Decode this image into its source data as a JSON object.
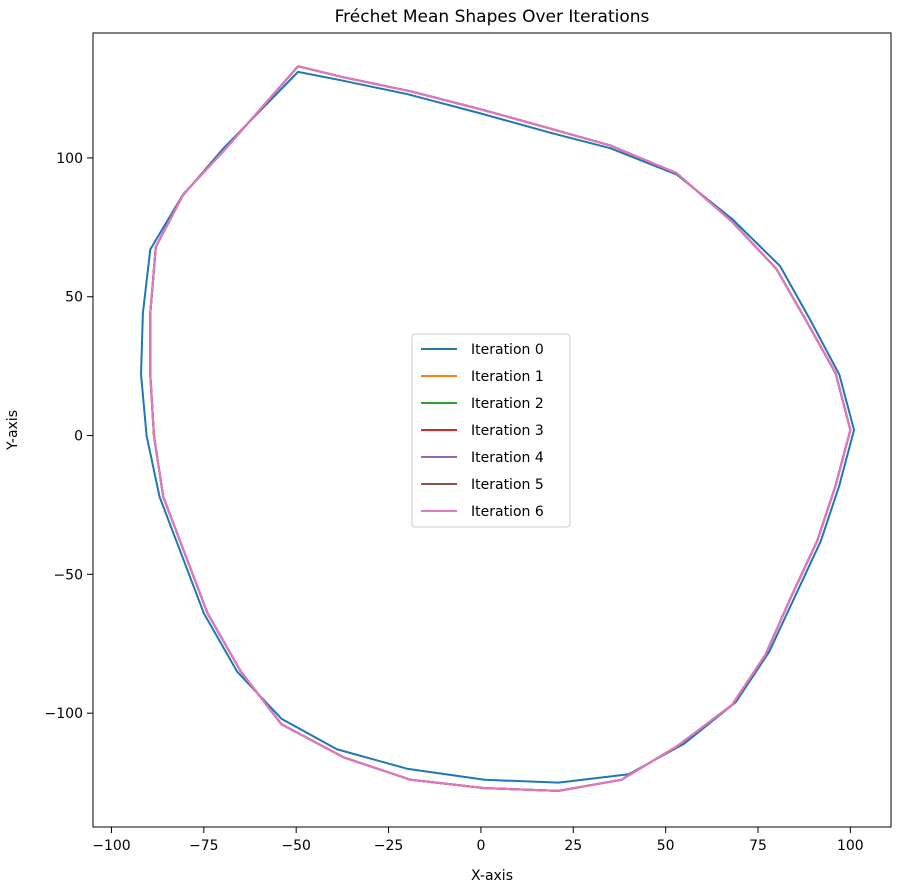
{
  "chart_data": {
    "type": "line",
    "title": "Fréchet Mean Shapes Over Iterations",
    "xlabel": "X-axis",
    "ylabel": "Y-axis",
    "xlim": [
      -105,
      111
    ],
    "ylim": [
      -141,
      145
    ],
    "x_ticks": [
      -100,
      -75,
      -50,
      -25,
      0,
      25,
      50,
      75,
      100
    ],
    "x_tick_labels": [
      "−100",
      "−75",
      "−50",
      "−25",
      "0",
      "25",
      "50",
      "75",
      "100"
    ],
    "y_ticks": [
      -100,
      -50,
      0,
      50,
      100
    ],
    "y_tick_labels": [
      "−100",
      "−50",
      "0",
      "50",
      "100"
    ],
    "grid": false,
    "legend_position": "center",
    "series": [
      {
        "name": "Iteration 0",
        "color": "#1f77b4",
        "points": [
          [
            -49.5,
            131
          ],
          [
            -38,
            128
          ],
          [
            -20,
            123
          ],
          [
            0,
            116
          ],
          [
            19,
            109
          ],
          [
            35,
            103.5
          ],
          [
            53,
            94
          ],
          [
            68,
            78
          ],
          [
            81,
            61
          ],
          [
            89,
            42
          ],
          [
            97,
            22
          ],
          [
            101,
            2
          ],
          [
            97,
            -18
          ],
          [
            92,
            -38
          ],
          [
            85,
            -58
          ],
          [
            78,
            -78
          ],
          [
            69,
            -96
          ],
          [
            55,
            -111
          ],
          [
            40,
            -122
          ],
          [
            21,
            -125
          ],
          [
            1,
            -124
          ],
          [
            -20,
            -120
          ],
          [
            -39,
            -113
          ],
          [
            -54,
            -102
          ],
          [
            -66,
            -85
          ],
          [
            -75,
            -64
          ],
          [
            -81,
            -43
          ],
          [
            -87,
            -22
          ],
          [
            -90.5,
            0
          ],
          [
            -92,
            22
          ],
          [
            -91.5,
            44
          ],
          [
            -89.5,
            67
          ],
          [
            -81,
            86
          ],
          [
            -70,
            103
          ],
          [
            -49.5,
            131
          ]
        ]
      },
      {
        "name": "Iteration 1",
        "color": "#ff7f0e",
        "points": [
          [
            -49.5,
            133
          ],
          [
            -37,
            129
          ],
          [
            -19,
            124
          ],
          [
            0,
            117.5
          ],
          [
            19,
            110.5
          ],
          [
            35,
            104.5
          ],
          [
            53,
            94.5
          ],
          [
            68,
            77
          ],
          [
            80,
            60
          ],
          [
            88,
            41.5
          ],
          [
            96,
            22.5
          ],
          [
            100,
            2
          ],
          [
            96,
            -18
          ],
          [
            91,
            -38
          ],
          [
            84,
            -58
          ],
          [
            77,
            -79
          ],
          [
            68,
            -97
          ],
          [
            53,
            -112
          ],
          [
            38,
            -124
          ],
          [
            21,
            -128
          ],
          [
            1,
            -127
          ],
          [
            -19,
            -124
          ],
          [
            -37,
            -116
          ],
          [
            -54,
            -104
          ],
          [
            -65,
            -85
          ],
          [
            -74,
            -64
          ],
          [
            -80,
            -43
          ],
          [
            -86,
            -22
          ],
          [
            -88.5,
            0
          ],
          [
            -89.5,
            22
          ],
          [
            -89.5,
            44
          ],
          [
            -88,
            68
          ],
          [
            -80.5,
            87
          ],
          [
            -69,
            103.5
          ],
          [
            -49.5,
            133
          ]
        ]
      },
      {
        "name": "Iteration 2",
        "color": "#2ca02c",
        "points": [
          [
            -49.5,
            133
          ],
          [
            -37,
            129
          ],
          [
            -19,
            124
          ],
          [
            0,
            117.5
          ],
          [
            19,
            110.5
          ],
          [
            35,
            104.5
          ],
          [
            53,
            94.5
          ],
          [
            68,
            77
          ],
          [
            80,
            60
          ],
          [
            88,
            41.5
          ],
          [
            96,
            22.5
          ],
          [
            100,
            2
          ],
          [
            96,
            -18
          ],
          [
            91,
            -38
          ],
          [
            84,
            -58
          ],
          [
            77,
            -79
          ],
          [
            68,
            -97
          ],
          [
            53,
            -112
          ],
          [
            38,
            -124
          ],
          [
            21,
            -128
          ],
          [
            1,
            -127
          ],
          [
            -19,
            -124
          ],
          [
            -37,
            -116
          ],
          [
            -54,
            -104
          ],
          [
            -65,
            -85
          ],
          [
            -74,
            -64
          ],
          [
            -80,
            -43
          ],
          [
            -86,
            -22
          ],
          [
            -88.5,
            0
          ],
          [
            -89.5,
            22
          ],
          [
            -89.5,
            44
          ],
          [
            -88,
            68
          ],
          [
            -80.5,
            87
          ],
          [
            -69,
            103.5
          ],
          [
            -49.5,
            133
          ]
        ]
      },
      {
        "name": "Iteration 3",
        "color": "#d62728",
        "points": [
          [
            -49.5,
            133
          ],
          [
            -37,
            129
          ],
          [
            -19,
            124
          ],
          [
            0,
            117.5
          ],
          [
            19,
            110.5
          ],
          [
            35,
            104.5
          ],
          [
            53,
            94.5
          ],
          [
            68,
            77
          ],
          [
            80,
            60
          ],
          [
            88,
            41.5
          ],
          [
            96,
            22.5
          ],
          [
            100,
            2
          ],
          [
            96,
            -18
          ],
          [
            91,
            -38
          ],
          [
            84,
            -58
          ],
          [
            77,
            -79
          ],
          [
            68,
            -97
          ],
          [
            53,
            -112
          ],
          [
            38,
            -124
          ],
          [
            21,
            -128
          ],
          [
            1,
            -127
          ],
          [
            -19,
            -124
          ],
          [
            -37,
            -116
          ],
          [
            -54,
            -104
          ],
          [
            -65,
            -85
          ],
          [
            -74,
            -64
          ],
          [
            -80,
            -43
          ],
          [
            -86,
            -22
          ],
          [
            -88.5,
            0
          ],
          [
            -89.5,
            22
          ],
          [
            -89.5,
            44
          ],
          [
            -88,
            68
          ],
          [
            -80.5,
            87
          ],
          [
            -69,
            103.5
          ],
          [
            -49.5,
            133
          ]
        ]
      },
      {
        "name": "Iteration 4",
        "color": "#9467bd",
        "points": [
          [
            -49.5,
            133
          ],
          [
            -37,
            129
          ],
          [
            -19,
            124
          ],
          [
            0,
            117.5
          ],
          [
            19,
            110.5
          ],
          [
            35,
            104.5
          ],
          [
            53,
            94.5
          ],
          [
            68,
            77
          ],
          [
            80,
            60
          ],
          [
            88,
            41.5
          ],
          [
            96,
            22.5
          ],
          [
            100,
            2
          ],
          [
            96,
            -18
          ],
          [
            91,
            -38
          ],
          [
            84,
            -58
          ],
          [
            77,
            -79
          ],
          [
            68,
            -97
          ],
          [
            53,
            -112
          ],
          [
            38,
            -124
          ],
          [
            21,
            -128
          ],
          [
            1,
            -127
          ],
          [
            -19,
            -124
          ],
          [
            -37,
            -116
          ],
          [
            -54,
            -104
          ],
          [
            -65,
            -85
          ],
          [
            -74,
            -64
          ],
          [
            -80,
            -43
          ],
          [
            -86,
            -22
          ],
          [
            -88.5,
            0
          ],
          [
            -89.5,
            22
          ],
          [
            -89.5,
            44
          ],
          [
            -88,
            68
          ],
          [
            -80.5,
            87
          ],
          [
            -69,
            103.5
          ],
          [
            -49.5,
            133
          ]
        ]
      },
      {
        "name": "Iteration 5",
        "color": "#8c564b",
        "points": [
          [
            -49.5,
            133
          ],
          [
            -37,
            129
          ],
          [
            -19,
            124
          ],
          [
            0,
            117.5
          ],
          [
            19,
            110.5
          ],
          [
            35,
            104.5
          ],
          [
            53,
            94.5
          ],
          [
            68,
            77
          ],
          [
            80,
            60
          ],
          [
            88,
            41.5
          ],
          [
            96,
            22.5
          ],
          [
            100,
            2
          ],
          [
            96,
            -18
          ],
          [
            91,
            -38
          ],
          [
            84,
            -58
          ],
          [
            77,
            -79
          ],
          [
            68,
            -97
          ],
          [
            53,
            -112
          ],
          [
            38,
            -124
          ],
          [
            21,
            -128
          ],
          [
            1,
            -127
          ],
          [
            -19,
            -124
          ],
          [
            -37,
            -116
          ],
          [
            -54,
            -104
          ],
          [
            -65,
            -85
          ],
          [
            -74,
            -64
          ],
          [
            -80,
            -43
          ],
          [
            -86,
            -22
          ],
          [
            -88.5,
            0
          ],
          [
            -89.5,
            22
          ],
          [
            -89.5,
            44
          ],
          [
            -88,
            68
          ],
          [
            -80.5,
            87
          ],
          [
            -69,
            103.5
          ],
          [
            -49.5,
            133
          ]
        ]
      },
      {
        "name": "Iteration 6",
        "color": "#e377c2",
        "points": [
          [
            -49.5,
            133
          ],
          [
            -37,
            129
          ],
          [
            -19,
            124
          ],
          [
            0,
            117.5
          ],
          [
            19,
            110.5
          ],
          [
            35,
            104.5
          ],
          [
            53,
            94.5
          ],
          [
            68,
            77
          ],
          [
            80,
            60
          ],
          [
            88,
            41.5
          ],
          [
            96,
            22.5
          ],
          [
            100,
            2
          ],
          [
            96,
            -18
          ],
          [
            91,
            -38
          ],
          [
            84,
            -58
          ],
          [
            77,
            -79
          ],
          [
            68,
            -97
          ],
          [
            53,
            -112
          ],
          [
            38,
            -124
          ],
          [
            21,
            -128
          ],
          [
            1,
            -127
          ],
          [
            -19,
            -124
          ],
          [
            -37,
            -116
          ],
          [
            -54,
            -104
          ],
          [
            -65,
            -85
          ],
          [
            -74,
            -64
          ],
          [
            -80,
            -43
          ],
          [
            -86,
            -22
          ],
          [
            -88.5,
            0
          ],
          [
            -89.5,
            22
          ],
          [
            -89.5,
            44
          ],
          [
            -88,
            68
          ],
          [
            -80.5,
            87
          ],
          [
            -69,
            103.5
          ],
          [
            -49.5,
            133
          ]
        ]
      }
    ]
  }
}
